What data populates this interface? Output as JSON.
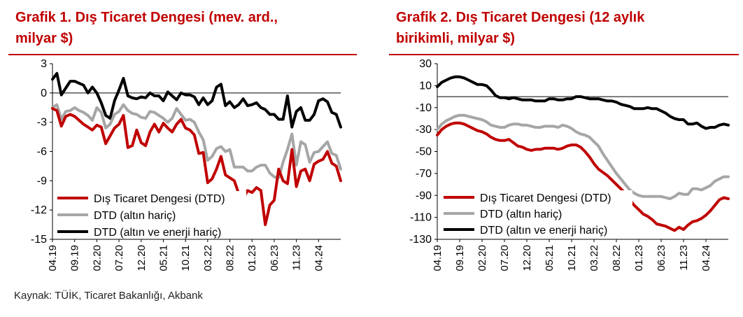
{
  "source": "Kaynak: TÜİK, Ticaret Bakanlığı, Akbank",
  "colors": {
    "title": "#c00000",
    "series1": "#c00000",
    "series2": "#a6a6a6",
    "series3": "#000000"
  },
  "chart_data": [
    {
      "type": "line",
      "title_lines": [
        "Grafik 1. Dış Ticaret Dengesi (mev. ard.,",
        "milyar $)"
      ],
      "ylim": [
        -15,
        3
      ],
      "yticks": [
        3,
        0,
        -3,
        -6,
        -9,
        -12,
        -15
      ],
      "xtick_labels": [
        "04.19",
        "09.19",
        "02.20",
        "07.20",
        "12.20",
        "05.21",
        "10.21",
        "03.22",
        "08.22",
        "01.23",
        "06.23",
        "11.23",
        "04.24"
      ],
      "grid": false,
      "legend": "bottom-left",
      "series": [
        {
          "name": "Dış Ticaret Dengesi (DTD)",
          "color": "#c00000",
          "values": [
            -1.6,
            -1.8,
            -3.4,
            -2.4,
            -2.2,
            -2.4,
            -2.8,
            -3.2,
            -3.5,
            -3.8,
            -3.3,
            -3.5,
            -5.2,
            -4.4,
            -3.6,
            -3.2,
            -2.3,
            -5.6,
            -5.4,
            -3.8,
            -5.1,
            -5.4,
            -4.0,
            -3.2,
            -4.0,
            -3.1,
            -3.6,
            -4.0,
            -3.2,
            -2.7,
            -3.6,
            -3.8,
            -4.3,
            -6.2,
            -6.1,
            -9.2,
            -8.8,
            -7.8,
            -6.5,
            -8.4,
            -8.7,
            -9.0,
            -10.3,
            -10.8,
            -10.0,
            -10.2,
            -9.7,
            -10.0,
            -13.5,
            -11.5,
            -11.0,
            -7.8,
            -9.0,
            -9.3,
            -5.8,
            -9.6,
            -8.0,
            -7.8,
            -9.0,
            -7.3,
            -7.0,
            -6.8,
            -6.0,
            -7.2,
            -7.5,
            -9.0
          ]
        },
        {
          "name": "DTD (altın hariç)",
          "color": "#a6a6a6",
          "values": [
            -1.5,
            -1.2,
            -2.7,
            -1.9,
            -1.8,
            -1.5,
            -1.8,
            -2.0,
            -2.3,
            -2.8,
            -1.5,
            -2.0,
            -3.6,
            -3.2,
            -2.2,
            -1.9,
            -1.2,
            -1.8,
            -2.1,
            -2.2,
            -2.5,
            -2.6,
            -1.9,
            -2.0,
            -2.3,
            -2.6,
            -3.0,
            -2.6,
            -1.6,
            -2.2,
            -2.8,
            -2.7,
            -3.0,
            -4.0,
            -4.8,
            -6.9,
            -6.5,
            -5.7,
            -5.5,
            -6.0,
            -5.8,
            -7.6,
            -7.6,
            -7.6,
            -8.0,
            -8.0,
            -7.6,
            -7.4,
            -7.4,
            -8.2,
            -8.6,
            -8.7,
            -7.1,
            -5.8,
            -4.2,
            -7.4,
            -5.0,
            -5.3,
            -7.1,
            -6.1,
            -6.0,
            -5.5,
            -5.0,
            -6.2,
            -6.4,
            -7.8
          ]
        },
        {
          "name": "DTD (altın ve enerji hariç)",
          "color": "#000000",
          "values": [
            1.4,
            2.0,
            -0.2,
            0.5,
            1.2,
            1.2,
            1.0,
            0.8,
            0.0,
            0.6,
            0.0,
            -1.0,
            -2.3,
            -2.6,
            -0.8,
            0.3,
            1.5,
            -0.3,
            -0.5,
            -0.6,
            -0.4,
            -0.5,
            0.0,
            -0.3,
            -0.3,
            -0.8,
            0.1,
            -0.3,
            -0.7,
            0.0,
            -0.2,
            -0.2,
            -0.4,
            -1.2,
            -0.5,
            -1.2,
            -0.8,
            0.6,
            0.9,
            -1.3,
            -0.9,
            -1.5,
            -1.2,
            -0.6,
            -1.3,
            -1.2,
            -1.0,
            -1.5,
            -1.7,
            -2.2,
            -2.2,
            -2.7,
            -2.7,
            -0.3,
            -3.5,
            -1.9,
            -1.5,
            -2.8,
            -2.8,
            -2.2,
            -0.8,
            -0.6,
            -0.9,
            -2.0,
            -2.2,
            -3.5
          ]
        }
      ]
    },
    {
      "type": "line",
      "title_lines": [
        "Grafik 2. Dış Ticaret Dengesi (12 aylık",
        "birikimli, milyar $)"
      ],
      "ylim": [
        -130,
        30
      ],
      "yticks": [
        30,
        10,
        -10,
        -30,
        -50,
        -70,
        -90,
        -110,
        -130
      ],
      "xtick_labels": [
        "04.19",
        "09.19",
        "02.20",
        "07.20",
        "12.20",
        "05.21",
        "10.21",
        "03.22",
        "08.22",
        "01.23",
        "06.23",
        "11.23",
        "04.24"
      ],
      "grid": false,
      "legend": "bottom-left",
      "series": [
        {
          "name": "Dış Ticaret Dengesi (DTD)",
          "color": "#c00000",
          "values": [
            -35,
            -30,
            -27,
            -25,
            -24,
            -24,
            -25,
            -27,
            -29,
            -31,
            -32,
            -34,
            -37,
            -39,
            -40,
            -40,
            -39,
            -42,
            -45,
            -46,
            -48,
            -49,
            -48,
            -48,
            -47,
            -47,
            -47,
            -48,
            -47,
            -45,
            -44,
            -44,
            -46,
            -50,
            -55,
            -61,
            -66,
            -69,
            -72,
            -76,
            -80,
            -84,
            -88,
            -94,
            -99,
            -103,
            -107,
            -109,
            -112,
            -116,
            -117,
            -118,
            -120,
            -122,
            -119,
            -121,
            -117,
            -114,
            -113,
            -111,
            -108,
            -104,
            -99,
            -94,
            -92,
            -93
          ]
        },
        {
          "name": "DTD (altın hariç)",
          "color": "#a6a6a6",
          "values": [
            -30,
            -25,
            -22,
            -20,
            -18,
            -17,
            -17,
            -18,
            -19,
            -20,
            -21,
            -23,
            -26,
            -27,
            -28,
            -28,
            -26,
            -25,
            -25,
            -26,
            -26,
            -27,
            -28,
            -28,
            -27,
            -27,
            -27,
            -28,
            -26,
            -27,
            -29,
            -32,
            -34,
            -35,
            -37,
            -41,
            -45,
            -52,
            -58,
            -64,
            -70,
            -75,
            -80,
            -85,
            -88,
            -90,
            -91,
            -91,
            -91,
            -91,
            -91,
            -92,
            -93,
            -91,
            -88,
            -89,
            -89,
            -84,
            -84,
            -85,
            -83,
            -81,
            -77,
            -75,
            -73,
            -73
          ]
        },
        {
          "name": "DTD (altın ve enerji hariç)",
          "color": "#000000",
          "values": [
            9,
            13,
            15,
            17,
            18,
            18,
            17,
            15,
            13,
            11,
            11,
            10,
            6,
            1,
            -1,
            -1,
            -2,
            -1,
            -2,
            -3,
            -3,
            -3,
            -4,
            -4,
            -4,
            -2,
            -2,
            -3,
            -3,
            -2,
            -2,
            0,
            0,
            -1,
            -2,
            -2,
            -2,
            -3,
            -4,
            -4,
            -5,
            -7,
            -8,
            -9,
            -11,
            -11,
            -11,
            -10,
            -11,
            -11,
            -13,
            -15,
            -18,
            -20,
            -21,
            -21,
            -25,
            -25,
            -24,
            -27,
            -29,
            -28,
            -28,
            -26,
            -25,
            -26
          ]
        }
      ]
    }
  ]
}
